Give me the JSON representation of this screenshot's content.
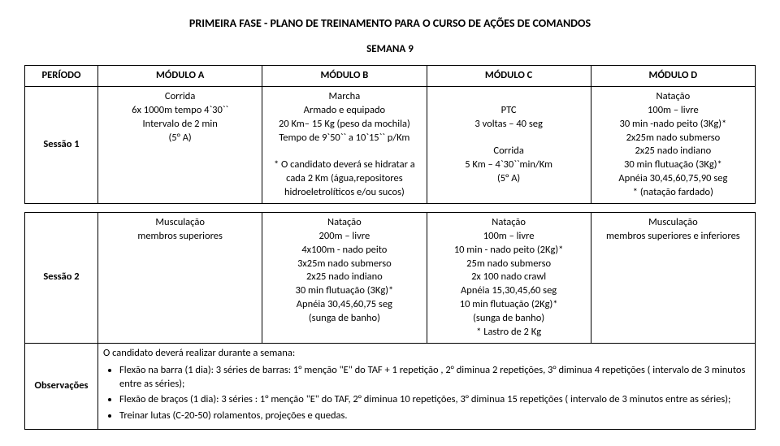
{
  "title": "PRIMEIRA  FASE  -  PLANO DE TREINAMENTO PARA O CURSO DE AÇÕES DE COMANDOS",
  "subtitle": "SEMANA 9",
  "headers": {
    "period": "PERÍODO",
    "modA": "MÓDULO A",
    "modB": "MÓDULO B",
    "modC": "MÓDULO C",
    "modD": "MÓDULO D"
  },
  "session1": {
    "label": "Sessão 1",
    "A": "Corrida\n6x 1000m tempo 4`30``\nIntervalo de 2 min\n(5° A)",
    "B": "Marcha\nArmado e equipado\n20 Km– 15 Kg (peso da mochila)\nTempo de 9`50`` a 10`15`` p/Km\n\n* O candidato deverá se hidratar a cada 2 Km (água,repositores hidroeletrolíticos e/ou sucos)",
    "C": "\nPTC\n3 voltas – 40 seg\n\nCorrida\n5 Km – 4`30``min/Km\n(5° A)",
    "D": "Natação\n100m – livre\n30 min -nado peito (3Kg)*\n2x25m nado submerso\n2x25 nado indiano\n30 min flutuação (3Kg)*\nApnéia 30,45,60,75,90 seg\n* (natação fardado)"
  },
  "session2": {
    "label": "Sessão 2",
    "A": "Musculação\nmembros superiores",
    "B": "Natação\n200m – livre\n4x100m - nado peito\n3x25m nado submerso\n2x25 nado indiano\n30 min flutuação (3Kg)*\nApnéia 30,45,60,75 seg\n(sunga de banho)",
    "C": "Natação\n100m – livre\n10 min - nado peito (2Kg)*\n25m nado submerso\n2x 100 nado crawl\nApnéia 15,30,45,60 seg\n10 min flutuação (2Kg)*\n(sunga de banho)\n* Lastro de 2 Kg",
    "D": "Musculação\nmembros superiores e inferiores"
  },
  "obs": {
    "label": "Observações",
    "intro": "O candidato deverá realizar durante a semana:",
    "items": [
      "Flexão na barra (1 dia): 3 séries de barras: 1° menção \"E\" do TAF + 1 repetição , 2° diminua 2 repetições, 3° diminua 4 repetições ( intervalo de 3 minutos entre as séries);",
      "Flexão de braços (1 dia): 3 séries : 1° menção \"E\" do TAF, 2° diminua 10 repetições, 3° diminua 15 repetições ( intervalo de 3 minutos entre as séries);",
      "Treinar lutas (C-20-50)  rolamentos, projeções e quedas."
    ]
  }
}
